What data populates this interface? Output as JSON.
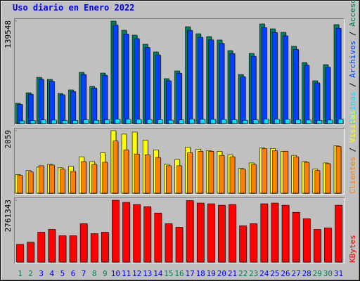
{
  "chart_data": [
    {
      "type": "bar",
      "title": "Uso diario en Enero 2022",
      "ylim": [
        0,
        139548
      ],
      "yticks": [
        139548
      ],
      "series": [
        {
          "name": "Accesos",
          "color": "#00805c",
          "values": [
            27700,
            42000,
            63000,
            60200,
            41100,
            45900,
            69800,
            50700,
            68800,
            139548,
            127100,
            120400,
            108000,
            97500,
            61200,
            71700,
            131900,
            122300,
            118500,
            113800,
            99400,
            66900,
            95600,
            135700,
            129000,
            124300,
            105200,
            83200,
            58300,
            80300,
            134800
          ]
        },
        {
          "name": "Archivos",
          "color": "#0040ff",
          "values": [
            26300,
            40100,
            60500,
            57600,
            39200,
            43800,
            66900,
            48300,
            65800,
            134200,
            122000,
            115700,
            103600,
            93500,
            58300,
            68600,
            127000,
            117500,
            113900,
            109300,
            95300,
            63900,
            91600,
            130700,
            124100,
            119500,
            100900,
            79500,
            55400,
            76800,
            129800
          ]
        },
        {
          "name": "Páginas",
          "color": "#00e0ff",
          "values": [
            3800,
            4300,
            5100,
            4900,
            4200,
            4400,
            5300,
            4600,
            5200,
            6300,
            6000,
            5900,
            5600,
            5400,
            4700,
            5000,
            6100,
            5900,
            5800,
            5700,
            5400,
            4600,
            5200,
            6200,
            6000,
            5900,
            5500,
            5000,
            4500,
            4900,
            6100
          ]
        }
      ]
    },
    {
      "type": "bar",
      "ylim": [
        0,
        2059
      ],
      "yticks": [
        2059
      ],
      "series": [
        {
          "name": "Visitas",
          "color": "#ffff00",
          "values": [
            611,
            747,
            860,
            950,
            837,
            883,
            1199,
            1041,
            1335,
            2059,
            1946,
            2014,
            1742,
            1426,
            950,
            1109,
            1516,
            1448,
            1403,
            1380,
            1267,
            815,
            996,
            1494,
            1471,
            1380,
            1245,
            1041,
            792,
            996,
            1561
          ]
        },
        {
          "name": "Clientes",
          "color": "#ff8000",
          "values": [
            588,
            702,
            905,
            928,
            792,
            724,
            1041,
            950,
            1018,
            1720,
            1426,
            1290,
            1267,
            1177,
            905,
            905,
            1335,
            1380,
            1380,
            1245,
            1199,
            792,
            950,
            1471,
            1403,
            1380,
            1199,
            1018,
            747,
            973,
            1539
          ]
        }
      ]
    },
    {
      "type": "bar",
      "ylim": [
        0,
        2761343
      ],
      "yticks": [
        2761343
      ],
      "categories": [
        "1",
        "2",
        "3",
        "4",
        "5",
        "6",
        "7",
        "8",
        "9",
        "10",
        "11",
        "12",
        "13",
        "14",
        "15",
        "16",
        "17",
        "18",
        "19",
        "20",
        "21",
        "22",
        "23",
        "24",
        "25",
        "26",
        "27",
        "28",
        "29",
        "30",
        "31"
      ],
      "category_colors": [
        "#00805c",
        "#00805c",
        "#0000ff",
        "#0000ff",
        "#0000ff",
        "#0000ff",
        "#0000ff",
        "#00805c",
        "#00805c",
        "#0000ff",
        "#0000ff",
        "#0000ff",
        "#0000ff",
        "#0000ff",
        "#00805c",
        "#00805c",
        "#0000ff",
        "#0000ff",
        "#0000ff",
        "#0000ff",
        "#0000ff",
        "#00805c",
        "#00805c",
        "#0000ff",
        "#0000ff",
        "#0000ff",
        "#0000ff",
        "#0000ff",
        "#00805c",
        "#00805c",
        "#0000ff"
      ],
      "series": [
        {
          "name": "KBytes",
          "color": "#ff0000",
          "values": [
            793500,
            888700,
            1333100,
            1460000,
            1174400,
            1174400,
            1714000,
            1269600,
            1333100,
            2761343,
            2666200,
            2570900,
            2475700,
            2190100,
            1714000,
            1555300,
            2745000,
            2634400,
            2602700,
            2539200,
            2570900,
            1618700,
            1714000,
            2602700,
            2634400,
            2539200,
            2221800,
            1936100,
            1460000,
            1523500,
            2539200
          ]
        }
      ]
    }
  ]
}
